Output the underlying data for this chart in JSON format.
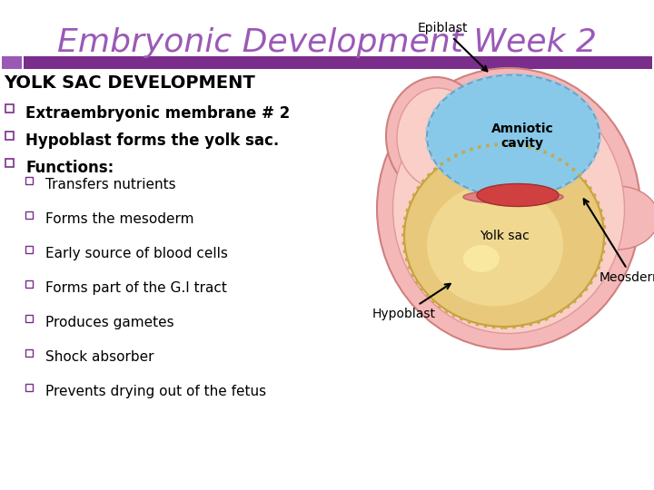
{
  "title": "Embryonic Development Week 2",
  "title_color": "#9b59b6",
  "title_fontsize": 26,
  "background_color": "#ffffff",
  "bar_color": "#7b2d8b",
  "bar_left_color": "#9b59b6",
  "main_heading": "YOLK SAC DEVELOPMENT",
  "main_heading_fontsize": 14,
  "bullet_fontsize": 12,
  "sub_bullet_fontsize": 11,
  "bullet_items": [
    "Extraembryonic membrane # 2",
    "Hypoblast forms the yolk sac.",
    "Functions:"
  ],
  "sub_bullet_items": [
    "Transfers nutrients",
    "Forms the mesoderm",
    "Early source of blood cells",
    "Forms part of the G.I tract",
    "Produces gametes",
    "Shock absorber",
    "Prevents drying out of the fetus"
  ],
  "label_fontsize": 9,
  "outer_pink": "#f5b8b8",
  "mid_pink": "#f9cfc8",
  "yolk_outer": "#e8c87a",
  "yolk_inner": "#f0d890",
  "amnio_blue": "#88c8e8",
  "amnio_edge": "#60a8d0",
  "embryo_red": "#d04040",
  "embryo_pink": "#e08080"
}
